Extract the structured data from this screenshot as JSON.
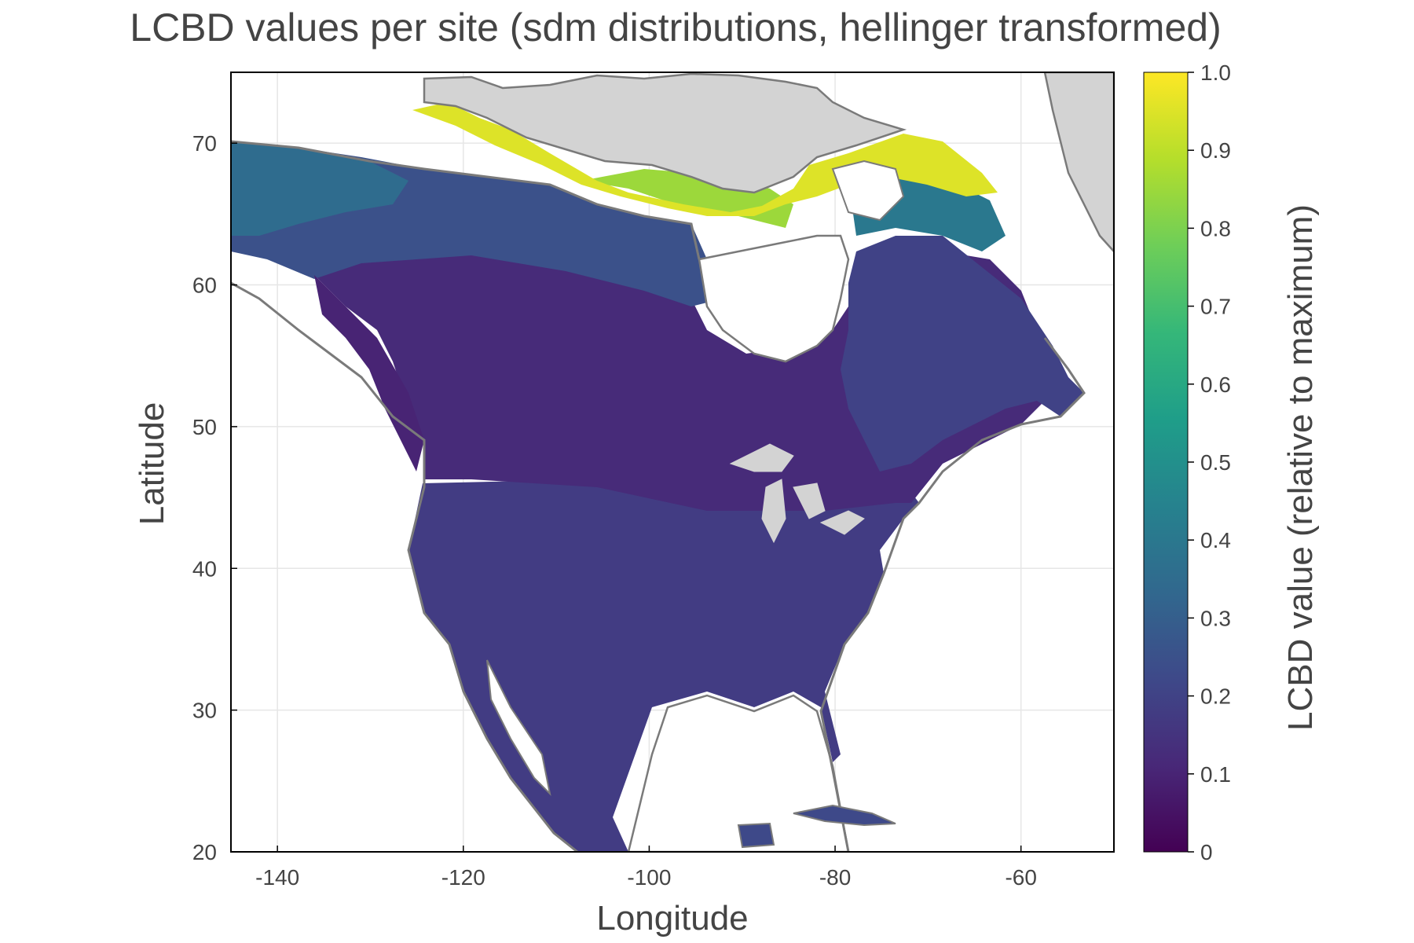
{
  "map": {
    "title": "LCBD values per site (sdm distributions, hellinger transformed)",
    "x_axis_label": "Longitude",
    "y_axis_label": "Latitude",
    "x_range": [
      -145,
      -50
    ],
    "y_range": [
      20,
      75
    ],
    "x_ticks": [
      {
        "value": -140,
        "label": "-140"
      },
      {
        "value": -120,
        "label": "-120"
      },
      {
        "value": -100,
        "label": "-100"
      },
      {
        "value": -80,
        "label": "-80"
      },
      {
        "value": -60,
        "label": "-60"
      }
    ],
    "y_ticks": [
      {
        "value": 20,
        "label": "20"
      },
      {
        "value": 30,
        "label": "30"
      },
      {
        "value": 40,
        "label": "40"
      },
      {
        "value": 50,
        "label": "50"
      },
      {
        "value": 60,
        "label": "60"
      },
      {
        "value": 70,
        "label": "70"
      }
    ],
    "grid": true,
    "colors": {
      "land_nodata": "#d3d3d3",
      "coastline": "#7a7a7a",
      "water": "#ffffff",
      "grid": "#e6e6e6",
      "axis": "#000000"
    },
    "colorbar": {
      "label": "LCBD value (relative to maximum)",
      "colormap": "viridis",
      "range": [
        0,
        1
      ],
      "ticks": [
        {
          "value": 0,
          "label": "0"
        },
        {
          "value": 0.1,
          "label": "0.1"
        },
        {
          "value": 0.2,
          "label": "0.2"
        },
        {
          "value": 0.3,
          "label": "0.3"
        },
        {
          "value": 0.4,
          "label": "0.4"
        },
        {
          "value": 0.5,
          "label": "0.5"
        },
        {
          "value": 0.6,
          "label": "0.6"
        },
        {
          "value": 0.7,
          "label": "0.7"
        },
        {
          "value": 0.8,
          "label": "0.8"
        },
        {
          "value": 0.9,
          "label": "0.9"
        },
        {
          "value": 1.0,
          "label": "1.0"
        }
      ],
      "stops": [
        "#440154",
        "#482878",
        "#3e4989",
        "#31688e",
        "#26828e",
        "#1f9e89",
        "#35b779",
        "#6ece58",
        "#b5de2b",
        "#fde725"
      ]
    },
    "regions": [
      {
        "name": "high-arctic-yellow",
        "lcbd": 0.95
      },
      {
        "name": "arctic-mainland-green",
        "lcbd": 0.85
      },
      {
        "name": "alaska-teal",
        "lcbd": 0.35
      },
      {
        "name": "northern-boreal",
        "lcbd": 0.25
      },
      {
        "name": "boreal-interior",
        "lcbd": 0.12
      },
      {
        "name": "central-plains",
        "lcbd": 0.1
      },
      {
        "name": "southern-us",
        "lcbd": 0.18
      },
      {
        "name": "mexico-west",
        "lcbd": 0.2
      },
      {
        "name": "quebec-labrador",
        "lcbd": 0.2
      },
      {
        "name": "hudson-coast-teal",
        "lcbd": 0.4
      }
    ]
  }
}
